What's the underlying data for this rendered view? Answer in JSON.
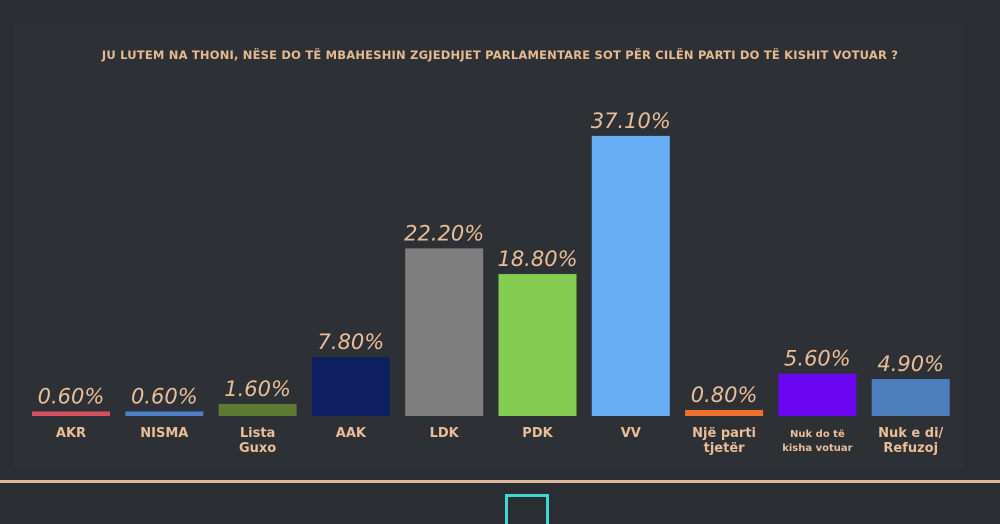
{
  "chart_data": {
    "type": "bar",
    "title": "JU LUTEM NA THONI, NËSE DO TË MBAHESHIN ZGJEDHJET PARLAMENTARE SOT PËR CILËN PARTI DO TË KISHIT VOTUAR ?",
    "categories": [
      [
        "AKR"
      ],
      [
        "NISMA"
      ],
      [
        "Lista",
        "Guxo"
      ],
      [
        "AAK"
      ],
      [
        "LDK"
      ],
      [
        "PDK"
      ],
      [
        "VV"
      ],
      [
        "Një parti",
        "tjetër"
      ],
      [
        "Nuk do të",
        "kisha votuar"
      ],
      [
        "Nuk e di/",
        "Refuzoj"
      ]
    ],
    "values": [
      0.6,
      0.6,
      1.6,
      7.8,
      22.2,
      18.8,
      37.1,
      0.8,
      5.6,
      4.9
    ],
    "value_labels": [
      "0.60%",
      "0.60%",
      "1.60%",
      "7.80%",
      "22.20%",
      "18.80%",
      "37.10%",
      "0.80%",
      "5.60%",
      "4.90%"
    ],
    "colors": [
      "#d4505a",
      "#4d7fc6",
      "#5e7a32",
      "#0d1f5e",
      "#7f7f7f",
      "#84cc52",
      "#68aef5",
      "#ef6f2d",
      "#6a06f2",
      "#4d7fbf"
    ],
    "ylim": [
      0,
      40
    ],
    "grid": false,
    "legend": "none"
  }
}
